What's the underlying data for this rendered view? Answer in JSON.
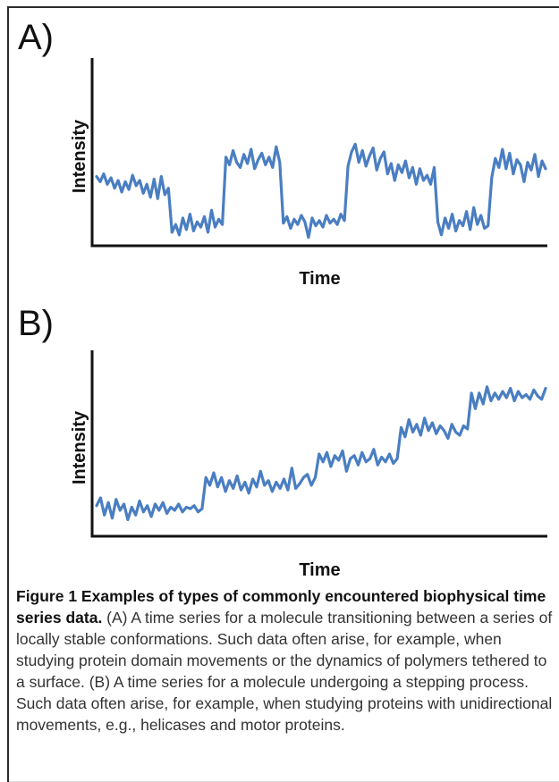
{
  "panels": [
    {
      "label": "A)"
    },
    {
      "label": "B)"
    }
  ],
  "caption": {
    "title": "Figure 1 Examples of types of commonly encountered biophysical time series data.",
    "text": " (A) A time series for a molecule transitioning between a series of locally stable conformations. Such data often arise, for example, when studying protein domain movements or the dynamics of polymers tethered to a surface. (B) A time series for a molecule undergoing a stepping process. Such data often arise, for example, when studying proteins with unidirectional movements, e.g., helicases and motor proteins."
  },
  "chart_data": [
    {
      "type": "line",
      "panel": "A)",
      "xlabel": "Time",
      "ylabel": "Intensity",
      "ticks": false,
      "color": "#4a7ec2",
      "ylim": [
        0,
        1
      ],
      "series": [
        {
          "values": [
            0.5,
            0.46,
            0.52,
            0.44,
            0.49,
            0.41,
            0.47,
            0.38,
            0.46,
            0.4,
            0.51,
            0.43,
            0.47,
            0.37,
            0.44,
            0.34,
            0.48,
            0.33,
            0.5,
            0.36,
            0.41,
            0.07,
            0.13,
            0.05,
            0.18,
            0.09,
            0.21,
            0.08,
            0.15,
            0.11,
            0.19,
            0.07,
            0.24,
            0.11,
            0.17,
            0.13,
            0.65,
            0.59,
            0.7,
            0.61,
            0.57,
            0.67,
            0.6,
            0.71,
            0.56,
            0.63,
            0.68,
            0.59,
            0.65,
            0.57,
            0.73,
            0.61,
            0.14,
            0.19,
            0.1,
            0.17,
            0.13,
            0.2,
            0.15,
            0.03,
            0.18,
            0.12,
            0.16,
            0.11,
            0.2,
            0.14,
            0.17,
            0.13,
            0.21,
            0.16,
            0.58,
            0.69,
            0.75,
            0.61,
            0.7,
            0.58,
            0.66,
            0.72,
            0.55,
            0.64,
            0.69,
            0.52,
            0.6,
            0.47,
            0.59,
            0.53,
            0.62,
            0.49,
            0.57,
            0.44,
            0.56,
            0.47,
            0.51,
            0.44,
            0.57,
            0.15,
            0.05,
            0.18,
            0.1,
            0.21,
            0.08,
            0.16,
            0.12,
            0.23,
            0.09,
            0.26,
            0.13,
            0.2,
            0.1,
            0.12,
            0.49,
            0.64,
            0.57,
            0.71,
            0.56,
            0.68,
            0.52,
            0.63,
            0.59,
            0.46,
            0.61,
            0.55,
            0.67,
            0.5,
            0.62,
            0.56
          ]
        }
      ]
    },
    {
      "type": "line",
      "panel": "B)",
      "xlabel": "Time",
      "ylabel": "Intensity",
      "ticks": false,
      "color": "#4a7ec2",
      "ylim": [
        0,
        1
      ],
      "series": [
        {
          "values": [
            0.11,
            0.16,
            0.05,
            0.13,
            0.03,
            0.15,
            0.08,
            0.12,
            0.02,
            0.1,
            0.05,
            0.14,
            0.07,
            0.11,
            0.04,
            0.12,
            0.08,
            0.13,
            0.06,
            0.1,
            0.08,
            0.12,
            0.07,
            0.1,
            0.09,
            0.11,
            0.07,
            0.09,
            0.29,
            0.24,
            0.32,
            0.23,
            0.29,
            0.2,
            0.27,
            0.22,
            0.3,
            0.21,
            0.26,
            0.19,
            0.28,
            0.23,
            0.33,
            0.24,
            0.27,
            0.2,
            0.26,
            0.22,
            0.28,
            0.21,
            0.35,
            0.22,
            0.25,
            0.29,
            0.31,
            0.24,
            0.29,
            0.44,
            0.39,
            0.45,
            0.36,
            0.43,
            0.4,
            0.46,
            0.33,
            0.41,
            0.43,
            0.37,
            0.45,
            0.39,
            0.41,
            0.47,
            0.37,
            0.42,
            0.39,
            0.44,
            0.38,
            0.41,
            0.61,
            0.55,
            0.66,
            0.58,
            0.63,
            0.56,
            0.67,
            0.59,
            0.64,
            0.57,
            0.62,
            0.59,
            0.54,
            0.63,
            0.58,
            0.56,
            0.62,
            0.6,
            0.83,
            0.73,
            0.83,
            0.76,
            0.87,
            0.78,
            0.83,
            0.79,
            0.84,
            0.8,
            0.86,
            0.78,
            0.84,
            0.8,
            0.82,
            0.79,
            0.85,
            0.81,
            0.79,
            0.86
          ]
        }
      ]
    }
  ]
}
